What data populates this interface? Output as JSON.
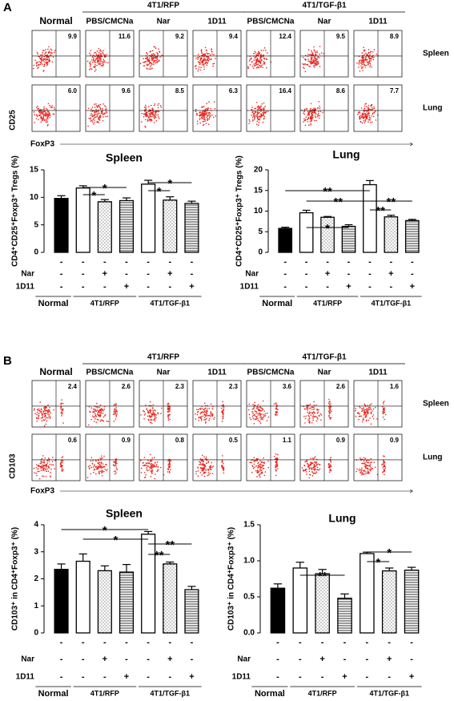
{
  "panel_A": {
    "label": "A",
    "group_headers": [
      "4T1/RFP",
      "4T1/TGF-β1"
    ],
    "columns": [
      "Normal",
      "PBS/CMCNa",
      "Nar",
      "1D11",
      "PBS/CMCNa",
      "Nar",
      "1D11"
    ],
    "rows": [
      {
        "name": "Spleen",
        "values": [
          "9.9",
          "11.6",
          "9.2",
          "9.4",
          "12.4",
          "9.5",
          "8.9"
        ]
      },
      {
        "name": "Lung",
        "values": [
          "6.0",
          "9.6",
          "8.5",
          "6.3",
          "16.4",
          "8.6",
          "7.7"
        ]
      }
    ],
    "y_label": "CD25",
    "x_label": "FoxP3"
  },
  "panel_B": {
    "label": "B",
    "group_headers": [
      "4T1/RFP",
      "4T1/TGF-β1"
    ],
    "columns": [
      "Normal",
      "PBS/CMCNa",
      "Nar",
      "1D11",
      "PBS/CMCNa",
      "Nar",
      "1D11"
    ],
    "rows": [
      {
        "name": "Spleen",
        "values": [
          "2.4",
          "2.6",
          "2.3",
          "2.3",
          "3.6",
          "2.6",
          "1.6"
        ]
      },
      {
        "name": "Lung",
        "values": [
          "0.6",
          "0.9",
          "0.8",
          "0.5",
          "1.1",
          "0.9",
          "0.9"
        ]
      }
    ],
    "y_label": "CD103",
    "x_label": "FoxP3"
  },
  "chart_data": [
    {
      "type": "bar",
      "title": "Spleen",
      "y_label": "CD4⁺CD25⁺Foxp3⁺ Tregs (%)",
      "values": [
        9.8,
        11.7,
        9.2,
        9.4,
        12.4,
        9.5,
        8.9
      ],
      "errors": [
        0.5,
        0.4,
        0.4,
        0.5,
        0.7,
        0.6,
        0.4
      ],
      "fills": [
        "solid",
        "open",
        "dots",
        "stripes",
        "open",
        "dots",
        "stripes"
      ],
      "ylim": [
        0,
        15
      ],
      "yticks": [
        0,
        5,
        10,
        15
      ],
      "annotations": [
        "*",
        "*",
        "*",
        "*"
      ],
      "treatment_rows": [
        {
          "name": null,
          "marks": [
            "-",
            "-",
            "-",
            "-",
            "-",
            "-",
            "-"
          ]
        },
        {
          "name": "Nar",
          "marks": [
            "-",
            "-",
            "+",
            "-",
            "-",
            "+",
            "-"
          ]
        },
        {
          "name": "1D11",
          "marks": [
            "-",
            "-",
            "-",
            "+",
            "-",
            "-",
            "+"
          ]
        }
      ],
      "groups": [
        "Normal",
        "4T1/RFP",
        "4T1/TGF-β1"
      ]
    },
    {
      "type": "bar",
      "title": "Lung",
      "y_label": "CD4⁺CD25⁺Foxp3⁺ Tregs (%)",
      "values": [
        5.8,
        9.6,
        8.5,
        6.3,
        16.4,
        8.6,
        7.7
      ],
      "errors": [
        0.3,
        0.6,
        0.2,
        0.4,
        1.0,
        0.4,
        0.3
      ],
      "fills": [
        "solid",
        "open",
        "dots",
        "stripes",
        "open",
        "dots",
        "stripes"
      ],
      "ylim": [
        0,
        20
      ],
      "yticks": [
        0,
        5,
        10,
        15,
        20
      ],
      "annotations": [
        "**",
        "**",
        "**",
        "**",
        "*"
      ],
      "treatment_rows": [
        {
          "name": null,
          "marks": [
            "-",
            "-",
            "-",
            "-",
            "-",
            "-",
            "-"
          ]
        },
        {
          "name": "Nar",
          "marks": [
            "-",
            "-",
            "+",
            "-",
            "-",
            "+",
            "-"
          ]
        },
        {
          "name": "1D11",
          "marks": [
            "-",
            "-",
            "-",
            "+",
            "-",
            "-",
            "+"
          ]
        }
      ],
      "groups": [
        "Normal",
        "4T1/RFP",
        "4T1/TGF-β1"
      ]
    },
    {
      "type": "bar",
      "title": "Spleen",
      "y_label": "CD103⁺ in CD4⁺Foxp3⁺ (%)",
      "values": [
        2.35,
        2.65,
        2.3,
        2.25,
        3.65,
        2.55,
        1.6
      ],
      "errors": [
        0.2,
        0.27,
        0.18,
        0.28,
        0.1,
        0.07,
        0.12
      ],
      "fills": [
        "solid",
        "open",
        "dots",
        "stripes",
        "open",
        "dots",
        "stripes"
      ],
      "ylim": [
        0,
        4
      ],
      "yticks": [
        0,
        1,
        2,
        3,
        4
      ],
      "annotations": [
        "*",
        "*",
        "**",
        "**"
      ],
      "treatment_rows": [
        {
          "name": null,
          "marks": [
            "-",
            "-",
            "-",
            "-",
            "-",
            "-",
            "-"
          ]
        },
        {
          "name": "Nar",
          "marks": [
            "-",
            "-",
            "+",
            "-",
            "-",
            "+",
            "-"
          ]
        },
        {
          "name": "1D11",
          "marks": [
            "-",
            "-",
            "-",
            "+",
            "-",
            "-",
            "+"
          ]
        }
      ],
      "groups": [
        "Normal",
        "4T1/RFP",
        "4T1/TGF-β1"
      ]
    },
    {
      "type": "bar",
      "title": "Lung",
      "y_label": "CD103⁺ in CD4⁺Foxp3⁺ (%)",
      "values": [
        0.62,
        0.9,
        0.82,
        0.48,
        1.1,
        0.86,
        0.87
      ],
      "errors": [
        0.06,
        0.08,
        0.06,
        0.06,
        0.02,
        0.04,
        0.04
      ],
      "fills": [
        "solid",
        "open",
        "dots",
        "stripes",
        "open",
        "dots",
        "stripes"
      ],
      "ylim": [
        0,
        1.5
      ],
      "yticks": [
        {
          "value": 0,
          "label": "0.0"
        },
        0.5,
        {
          "value": 1,
          "label": "1.0"
        },
        1.5
      ],
      "annotations": [
        "**",
        "*",
        "*"
      ],
      "treatment_rows": [
        {
          "name": null,
          "marks": [
            "-",
            "-",
            "-",
            "-",
            "-",
            "-",
            "-"
          ]
        },
        {
          "name": "Nar",
          "marks": [
            "-",
            "-",
            "+",
            "-",
            "-",
            "+",
            "-"
          ]
        },
        {
          "name": "1D11",
          "marks": [
            "-",
            "-",
            "-",
            "+",
            "-",
            "-",
            "+"
          ]
        }
      ],
      "groups": [
        "Normal",
        "4T1/RFP",
        "4T1/TGF-β1"
      ]
    }
  ]
}
